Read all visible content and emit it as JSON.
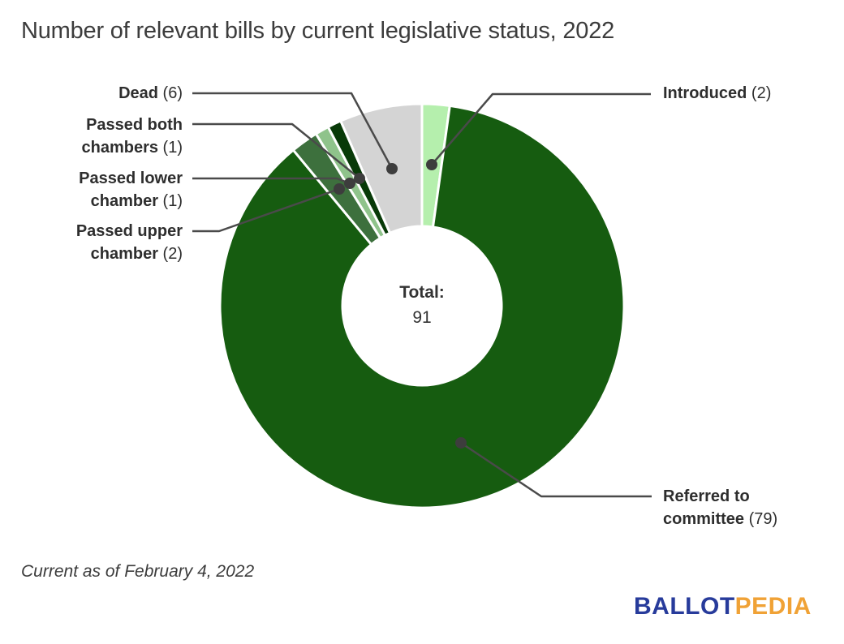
{
  "title": "Number of relevant bills by current legislative status, 2022",
  "footnote": "Current as of February 4, 2022",
  "logo": {
    "part1": "BALLOT",
    "part2": "PEDIA",
    "part1_color": "#273b9b",
    "part2_color": "#f0a236"
  },
  "chart_data": {
    "type": "pie",
    "subtype": "donut",
    "title": "Number of relevant bills by current legislative status, 2022",
    "direction": "clockwise",
    "start_angle_deg": 0,
    "legend_position": "callout-labels",
    "center_label": "Total:",
    "center_value": "91",
    "total": 91,
    "slice_border_color": "#ffffff",
    "leader_line_color": "#4a4a4a",
    "segments": [
      {
        "name": "Introduced",
        "value": 2,
        "color": "#b5efad",
        "label_lines": [
          "Introduced"
        ],
        "count_label": "(2)"
      },
      {
        "name": "Referred to committee",
        "value": 79,
        "color": "#165c10",
        "label_lines": [
          "Referred to",
          "committee"
        ],
        "count_label": "(79)"
      },
      {
        "name": "Passed upper chamber",
        "value": 2,
        "color": "#3d703d",
        "label_lines": [
          "Passed upper",
          "chamber"
        ],
        "count_label": "(2)"
      },
      {
        "name": "Passed lower chamber",
        "value": 1,
        "color": "#8fc38b",
        "label_lines": [
          "Passed lower",
          "chamber"
        ],
        "count_label": "(1)"
      },
      {
        "name": "Passed both chambers",
        "value": 1,
        "color": "#083a08",
        "label_lines": [
          "Passed both",
          "chambers"
        ],
        "count_label": "(1)"
      },
      {
        "name": "Dead",
        "value": 6,
        "color": "#d4d4d4",
        "label_lines": [
          "Dead"
        ],
        "count_label": "(6)"
      }
    ]
  }
}
